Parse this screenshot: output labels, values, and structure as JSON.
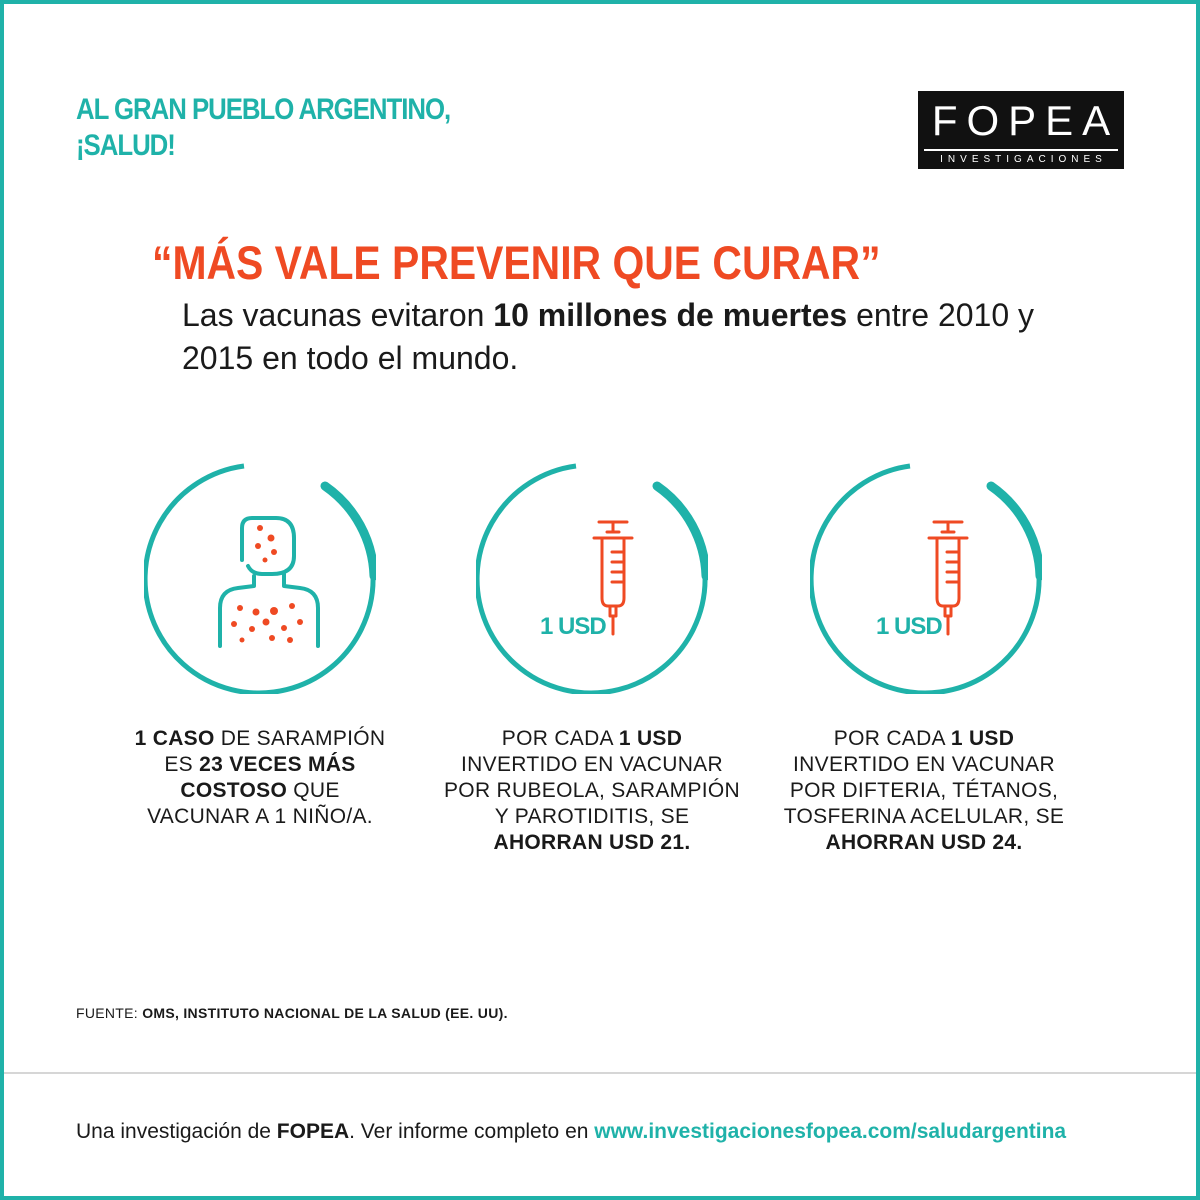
{
  "colors": {
    "accent": "#1fb2a9",
    "highlight": "#ef4a23",
    "text": "#1a1a1a",
    "logo_bg": "#111111"
  },
  "kicker": {
    "line1": "AL GRAN PUEBLO ARGENTINO,",
    "line2": "¡SALUD!"
  },
  "logo": {
    "word": "FOPEA",
    "sub": "INVESTIGACIONES"
  },
  "headline": "“MÁS VALE PREVENIR QUE CURAR”",
  "lead": {
    "before": "Las vacunas evitaron ",
    "bold": "10 millones de muertes",
    "after": " entre 2010 y 2015 en todo el mundo."
  },
  "stats": [
    {
      "icon": "measles-person-icon",
      "usd_label": "",
      "caption": [
        [
          {
            "t": "1 CASO",
            "b": true
          },
          {
            "t": " DE SARAMPIÓN"
          }
        ],
        [
          {
            "t": "ES "
          },
          {
            "t": "23 VECES MÁS",
            "b": true
          }
        ],
        [
          {
            "t": "COSTOSO",
            "b": true
          },
          {
            "t": " QUE"
          }
        ],
        [
          {
            "t": "VACUNAR A 1 NIÑO/A."
          }
        ]
      ]
    },
    {
      "icon": "syringe-icon",
      "usd_label": "1 USD",
      "caption": [
        [
          {
            "t": "POR CADA "
          },
          {
            "t": "1 USD",
            "b": true
          }
        ],
        [
          {
            "t": "INVERTIDO EN VACUNAR"
          }
        ],
        [
          {
            "t": "POR RUBEOLA, SARAMPIÓN"
          }
        ],
        [
          {
            "t": "Y PAROTIDITIS, SE"
          }
        ],
        [
          {
            "t": "AHORRAN USD 21.",
            "b": true
          }
        ]
      ]
    },
    {
      "icon": "syringe-icon",
      "usd_label": "1 USD",
      "caption": [
        [
          {
            "t": "POR CADA "
          },
          {
            "t": "1 USD",
            "b": true
          }
        ],
        [
          {
            "t": "INVERTIDO EN VACUNAR"
          }
        ],
        [
          {
            "t": "POR DIFTERIA, TÉTANOS,"
          }
        ],
        [
          {
            "t": "TOSFERINA ACELULAR, SE"
          }
        ],
        [
          {
            "t": "AHORRAN USD 24.",
            "b": true
          }
        ]
      ]
    }
  ],
  "source": {
    "label": "FUENTE: ",
    "value": "OMS, INSTITUTO NACIONAL DE LA SALUD (EE. UU)."
  },
  "footer": {
    "prefix": "Una investigación de ",
    "org": "FOPEA",
    "middle": ". Ver informe completo en ",
    "link": "www.investigacionesfopea.com/saludargentina"
  }
}
